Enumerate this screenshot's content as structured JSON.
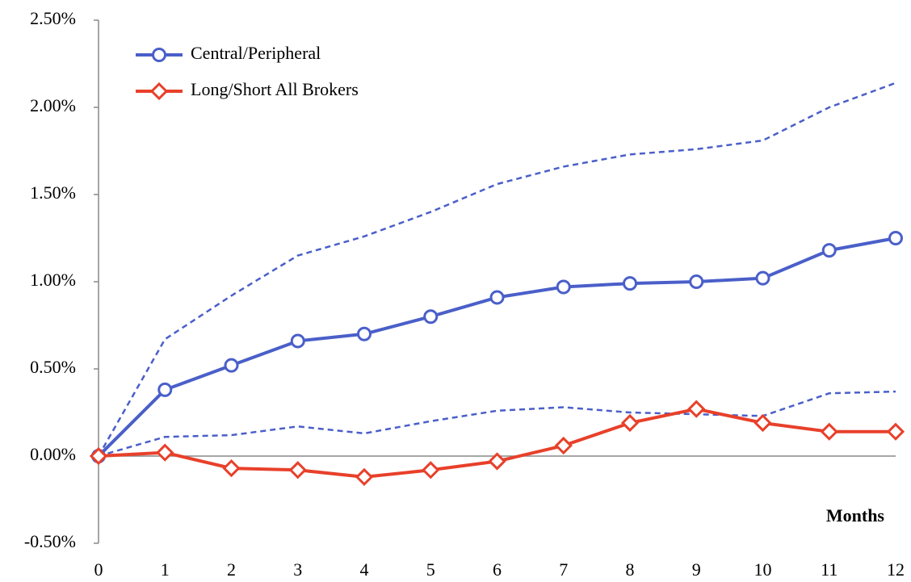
{
  "chart_data": {
    "type": "line",
    "x": [
      0,
      1,
      2,
      3,
      4,
      5,
      6,
      7,
      8,
      9,
      10,
      11,
      12
    ],
    "series": [
      {
        "color": "#4a5fc9",
        "dash": true,
        "values": [
          0,
          0.67,
          0.92,
          1.15,
          1.26,
          1.4,
          1.56,
          1.66,
          1.73,
          1.76,
          1.81,
          2.0,
          2.14
        ]
      },
      {
        "color": "#4a5fc9",
        "dash": true,
        "values": [
          0,
          0.11,
          0.12,
          0.17,
          0.13,
          0.2,
          0.26,
          0.28,
          0.25,
          0.24,
          0.23,
          0.36,
          0.37
        ]
      },
      {
        "name": "Central/Peripheral",
        "color": "#4a5fc9",
        "marker": "circle",
        "values": [
          0,
          0.38,
          0.52,
          0.66,
          0.7,
          0.8,
          0.91,
          0.97,
          0.99,
          1.0,
          1.02,
          1.18,
          1.25
        ]
      },
      {
        "name": "Long/Short All Brokers",
        "color": "#e8402a",
        "marker": "diamond",
        "values": [
          0,
          0.02,
          -0.07,
          -0.08,
          -0.12,
          -0.08,
          -0.03,
          0.06,
          0.19,
          0.27,
          0.19,
          0.14,
          0.14
        ]
      }
    ],
    "xlabel": "Months",
    "xlim": [
      0,
      12
    ],
    "xticks": [
      0,
      1,
      2,
      3,
      4,
      5,
      6,
      7,
      8,
      9,
      10,
      11,
      12
    ],
    "ylim": [
      -0.5,
      2.5
    ],
    "yticks": [
      {
        "value": -0.5,
        "label": "-0.50%"
      },
      {
        "value": 0,
        "label": "0.00%"
      },
      {
        "value": 0.5,
        "label": "0.50%"
      },
      {
        "value": 1,
        "label": "1.00%"
      },
      {
        "value": 1.5,
        "label": "1.50%"
      },
      {
        "value": 2,
        "label": "2.00%"
      },
      {
        "value": 2.5,
        "label": "2.50%"
      }
    ],
    "legend": "upper left",
    "grid": false
  }
}
